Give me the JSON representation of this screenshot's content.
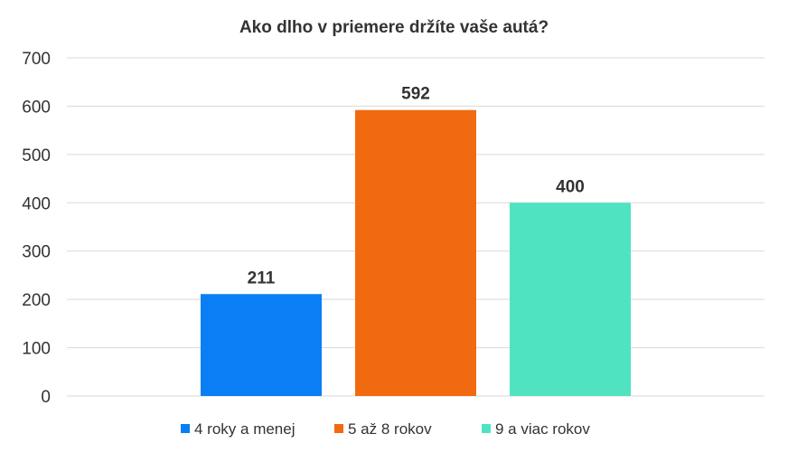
{
  "chart_data": {
    "type": "bar",
    "title": "Ako dlho v priemere držíte vaše autá?",
    "xlabel": "",
    "ylabel": "",
    "ylim": [
      0,
      700
    ],
    "yticks": [
      0,
      100,
      200,
      300,
      400,
      500,
      600,
      700
    ],
    "grid": true,
    "legend_position": "bottom",
    "series": [
      {
        "name": "4 roky a menej",
        "values": [
          211
        ],
        "color": "#0a7ff5"
      },
      {
        "name": "5 až 8 rokov",
        "values": [
          592
        ],
        "color": "#f26a10"
      },
      {
        "name": "9 a viac rokov",
        "values": [
          400
        ],
        "color": "#50e3c2"
      }
    ],
    "data_labels": [
      "211",
      "592",
      "400"
    ]
  }
}
